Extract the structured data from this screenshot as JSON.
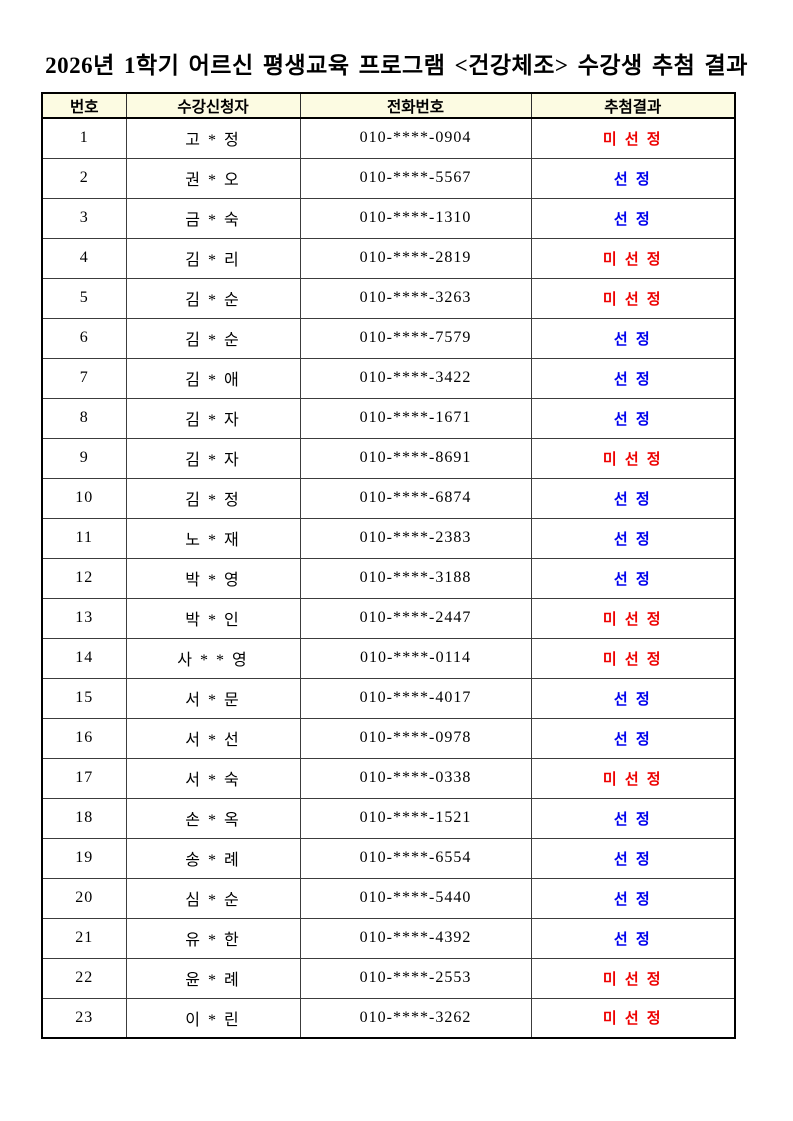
{
  "page": {
    "title": "2026년 1학기 어르신 평생교육 프로그램 <건강체조> 수강생 추첨 결과"
  },
  "colors": {
    "selected_text": "#0000ee",
    "not_selected_text": "#ee0000",
    "header_bg": "#fcfbe2",
    "outer_border": "#000000",
    "inner_border": "#3c3c3c"
  },
  "result_labels": {
    "selected": "선 정",
    "not_selected": "미 선 정"
  },
  "table": {
    "headers": [
      "번호",
      "수강신청자",
      "전화번호",
      "추첨결과"
    ],
    "rows": [
      {
        "no": "1",
        "name": "고 * 정",
        "phone": "010-****-0904",
        "result": "미 선 정",
        "selected": false
      },
      {
        "no": "2",
        "name": "권 * 오",
        "phone": "010-****-5567",
        "result": "선 정",
        "selected": true
      },
      {
        "no": "3",
        "name": "금 * 숙",
        "phone": "010-****-1310",
        "result": "선 정",
        "selected": true
      },
      {
        "no": "4",
        "name": "김 * 리",
        "phone": "010-****-2819",
        "result": "미 선 정",
        "selected": false
      },
      {
        "no": "5",
        "name": "김 * 순",
        "phone": "010-****-3263",
        "result": "미 선 정",
        "selected": false
      },
      {
        "no": "6",
        "name": "김 * 순",
        "phone": "010-****-7579",
        "result": "선 정",
        "selected": true
      },
      {
        "no": "7",
        "name": "김 * 애",
        "phone": "010-****-3422",
        "result": "선 정",
        "selected": true
      },
      {
        "no": "8",
        "name": "김 * 자",
        "phone": "010-****-1671",
        "result": "선 정",
        "selected": true
      },
      {
        "no": "9",
        "name": "김 * 자",
        "phone": "010-****-8691",
        "result": "미 선 정",
        "selected": false
      },
      {
        "no": "10",
        "name": "김 * 정",
        "phone": "010-****-6874",
        "result": "선 정",
        "selected": true
      },
      {
        "no": "11",
        "name": "노 * 재",
        "phone": "010-****-2383",
        "result": "선 정",
        "selected": true
      },
      {
        "no": "12",
        "name": "박 * 영",
        "phone": "010-****-3188",
        "result": "선 정",
        "selected": true
      },
      {
        "no": "13",
        "name": "박 * 인",
        "phone": "010-****-2447",
        "result": "미 선 정",
        "selected": false
      },
      {
        "no": "14",
        "name": "사 * * 영",
        "phone": "010-****-0114",
        "result": "미 선 정",
        "selected": false
      },
      {
        "no": "15",
        "name": "서 * 문",
        "phone": "010-****-4017",
        "result": "선 정",
        "selected": true
      },
      {
        "no": "16",
        "name": "서 * 선",
        "phone": "010-****-0978",
        "result": "선 정",
        "selected": true
      },
      {
        "no": "17",
        "name": "서 * 숙",
        "phone": "010-****-0338",
        "result": "미 선 정",
        "selected": false
      },
      {
        "no": "18",
        "name": "손 * 옥",
        "phone": "010-****-1521",
        "result": "선 정",
        "selected": true
      },
      {
        "no": "19",
        "name": "송 * 례",
        "phone": "010-****-6554",
        "result": "선 정",
        "selected": true
      },
      {
        "no": "20",
        "name": "심 * 순",
        "phone": "010-****-5440",
        "result": "선 정",
        "selected": true
      },
      {
        "no": "21",
        "name": "유 * 한",
        "phone": "010-****-4392",
        "result": "선 정",
        "selected": true
      },
      {
        "no": "22",
        "name": "윤 * 례",
        "phone": "010-****-2553",
        "result": "미 선 정",
        "selected": false
      },
      {
        "no": "23",
        "name": "이 * 린",
        "phone": "010-****-3262",
        "result": "미 선 정",
        "selected": false
      }
    ]
  }
}
